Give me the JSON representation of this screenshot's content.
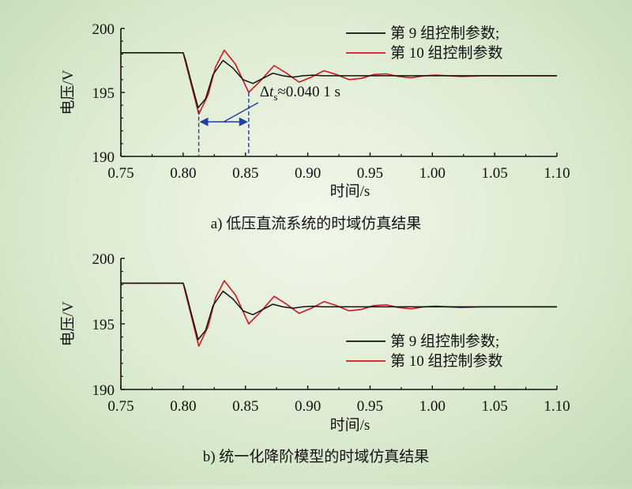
{
  "colors": {
    "series9": "#111111",
    "series10": "#d0181f",
    "annotation": "#1f3fa8"
  },
  "chart_data": [
    {
      "id": "a",
      "type": "line",
      "caption": "a) 低压直流系统的时域仿真结果",
      "xlabel": "时间/s",
      "ylabel": "电压/V",
      "xlim": [
        0.75,
        1.1
      ],
      "ylim": [
        190,
        200
      ],
      "xticks": [
        "0.75",
        "0.80",
        "0.85",
        "0.90",
        "0.95",
        "1.00",
        "1.05",
        "1.10"
      ],
      "yticks": [
        "190",
        "195",
        "200"
      ],
      "legend_position": "top-right",
      "annotation": {
        "delta_prefix": "Δ",
        "var": "t",
        "sub": "s",
        "value": "≈0.040 1 s",
        "x_start": 0.8125,
        "x_end": 0.8526
      },
      "series": [
        {
          "name": "第 9 组控制参数;",
          "colorKey": "series9",
          "x": [
            0.75,
            0.8,
            0.802,
            0.806,
            0.812,
            0.818,
            0.824,
            0.832,
            0.84,
            0.848,
            0.856,
            0.864,
            0.872,
            0.88,
            0.888,
            0.896,
            0.904,
            0.912,
            0.92,
            0.94,
            1.1
          ],
          "y": [
            198.1,
            198.1,
            197.5,
            196.0,
            193.8,
            194.5,
            196.4,
            197.5,
            196.9,
            196.0,
            195.7,
            196.1,
            196.5,
            196.3,
            196.2,
            196.3,
            196.35,
            196.3,
            196.3,
            196.3,
            196.3
          ]
        },
        {
          "name": "第 10 组控制参数",
          "colorKey": "series10",
          "x": [
            0.75,
            0.8,
            0.802,
            0.806,
            0.8125,
            0.82,
            0.826,
            0.833,
            0.842,
            0.8526,
            0.862,
            0.873,
            0.883,
            0.893,
            0.903,
            0.913,
            0.923,
            0.933,
            0.943,
            0.953,
            0.963,
            0.973,
            0.983,
            0.993,
            1.003,
            1.013,
            1.023,
            1.04,
            1.1
          ],
          "y": [
            198.1,
            198.1,
            197.3,
            195.8,
            193.3,
            194.8,
            197.0,
            198.3,
            197.2,
            195.0,
            195.9,
            197.1,
            196.5,
            195.8,
            196.2,
            196.7,
            196.4,
            196.0,
            196.1,
            196.4,
            196.45,
            196.25,
            196.15,
            196.3,
            196.35,
            196.3,
            196.25,
            196.3,
            196.3
          ]
        }
      ]
    },
    {
      "id": "b",
      "type": "line",
      "caption": "b) 统一化降阶模型的时域仿真结果",
      "xlabel": "时间/s",
      "ylabel": "电压/V",
      "xlim": [
        0.75,
        1.1
      ],
      "ylim": [
        190,
        200
      ],
      "xticks": [
        "0.75",
        "0.80",
        "0.85",
        "0.90",
        "0.95",
        "1.00",
        "1.05",
        "1.10"
      ],
      "yticks": [
        "190",
        "195",
        "200"
      ],
      "legend_position": "bottom-right",
      "series": [
        {
          "name": "第 9 组控制参数;",
          "colorKey": "series9",
          "x": [
            0.75,
            0.8,
            0.802,
            0.806,
            0.812,
            0.818,
            0.824,
            0.832,
            0.84,
            0.848,
            0.856,
            0.864,
            0.872,
            0.88,
            0.888,
            0.896,
            0.904,
            0.912,
            0.92,
            0.94,
            1.1
          ],
          "y": [
            198.1,
            198.1,
            197.5,
            196.0,
            193.8,
            194.5,
            196.4,
            197.5,
            196.9,
            196.0,
            195.7,
            196.1,
            196.5,
            196.3,
            196.2,
            196.3,
            196.35,
            196.3,
            196.3,
            196.3,
            196.3
          ]
        },
        {
          "name": "第 10 组控制参数",
          "colorKey": "series10",
          "x": [
            0.75,
            0.8,
            0.802,
            0.806,
            0.8125,
            0.82,
            0.826,
            0.833,
            0.842,
            0.8526,
            0.862,
            0.873,
            0.883,
            0.893,
            0.903,
            0.913,
            0.923,
            0.933,
            0.943,
            0.953,
            0.963,
            0.973,
            0.983,
            0.993,
            1.003,
            1.013,
            1.023,
            1.04,
            1.1
          ],
          "y": [
            198.1,
            198.1,
            197.3,
            195.8,
            193.3,
            194.8,
            197.0,
            198.3,
            197.2,
            195.0,
            195.9,
            197.1,
            196.5,
            195.8,
            196.2,
            196.7,
            196.4,
            196.0,
            196.1,
            196.4,
            196.45,
            196.25,
            196.15,
            196.3,
            196.35,
            196.3,
            196.25,
            196.3,
            196.3
          ]
        }
      ]
    }
  ]
}
